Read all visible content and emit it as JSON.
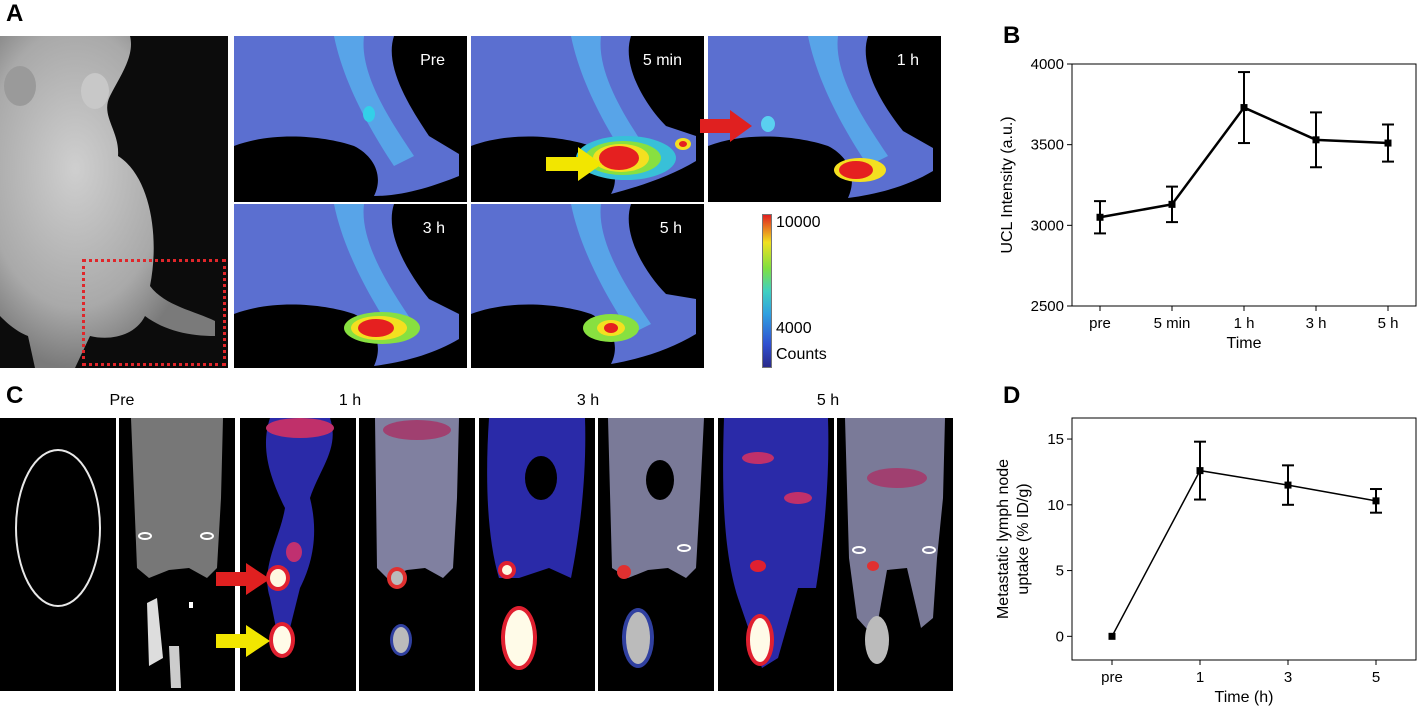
{
  "panel_labels": {
    "a": "A",
    "b": "B",
    "c": "C",
    "d": "D"
  },
  "panel_a": {
    "frames": [
      "Pre",
      "5 min",
      "1 h",
      "3 h",
      "5 h"
    ],
    "colorbar": {
      "max_label": "10000",
      "min_label": "4000",
      "unit_label": "Counts"
    }
  },
  "panel_c": {
    "column_labels": [
      "Pre",
      "1 h",
      "3 h",
      "5 h"
    ]
  },
  "colors": {
    "red_arrow": "#e02020",
    "yellow_arrow": "#f2e600",
    "roi_box": "#e0262a"
  },
  "chart_data": [
    {
      "type": "line",
      "panel": "B",
      "categories": [
        "pre",
        "5 min",
        "1 h",
        "3 h",
        "5 h"
      ],
      "values": [
        3050,
        3130,
        3730,
        3530,
        3510
      ],
      "errors": [
        100,
        110,
        220,
        170,
        115
      ],
      "xlabel": "Time",
      "ylabel": "UCL Intensity (a.u.)",
      "ylim": [
        2500,
        4000
      ],
      "yticks": [
        "2500",
        "3000",
        "3500",
        "4000"
      ],
      "grid": false
    },
    {
      "type": "line",
      "panel": "D",
      "categories": [
        "pre",
        "1",
        "3",
        "5"
      ],
      "values": [
        0,
        12.6,
        11.5,
        10.3
      ],
      "errors": [
        0,
        2.2,
        1.5,
        0.9
      ],
      "xlabel": "Time (h)",
      "ylabel_line1": "Metastatic lymph node",
      "ylabel_line2": "uptake (% ID/g)",
      "ylim": [
        -1.8,
        16.6
      ],
      "yticks": [
        "0",
        "5",
        "10",
        "15"
      ],
      "grid": false
    }
  ]
}
